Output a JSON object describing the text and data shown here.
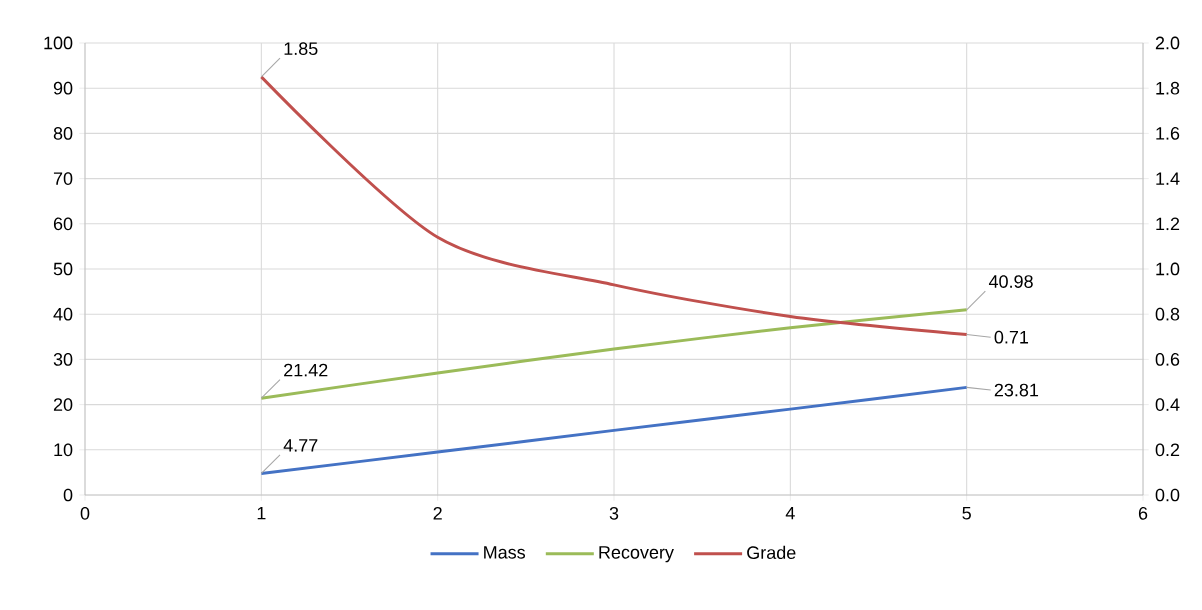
{
  "chart_data": {
    "type": "line",
    "x": [
      1,
      2,
      3,
      4,
      5
    ],
    "series": [
      {
        "name": "Mass",
        "color": "#4472c4",
        "values": [
          4.77,
          9.5,
          14.3,
          19.0,
          23.81
        ],
        "value_labels": [
          "4.77",
          null,
          null,
          null,
          "23.81"
        ]
      },
      {
        "name": "Recovery",
        "color": "#9bbb59",
        "values": [
          21.42,
          27.0,
          32.3,
          37.0,
          40.98
        ],
        "value_labels": [
          "21.42",
          null,
          null,
          null,
          "40.98"
        ]
      },
      {
        "name": "Grade",
        "color": "#c0504d",
        "axis": "y2",
        "values": [
          1.85,
          1.14,
          0.93,
          0.79,
          0.71
        ],
        "value_labels": [
          "1.85",
          null,
          null,
          null,
          "0.71"
        ]
      }
    ],
    "xlim": [
      0,
      6
    ],
    "xticks": [
      0,
      1,
      2,
      3,
      4,
      5,
      6
    ],
    "ylim": [
      0,
      100
    ],
    "yticks": [
      0,
      10,
      20,
      30,
      40,
      50,
      60,
      70,
      80,
      90,
      100
    ],
    "y2lim": [
      0,
      2
    ],
    "y2ticks": [
      {
        "value": 0,
        "label": "0.0"
      },
      {
        "value": 0.2,
        "label": "0.2"
      },
      {
        "value": 0.4,
        "label": "0.4"
      },
      {
        "value": 0.6,
        "label": "0.6"
      },
      {
        "value": 0.8,
        "label": "0.8"
      },
      {
        "value": 1,
        "label": "1.0"
      },
      {
        "value": 1.2,
        "label": "1.2"
      },
      {
        "value": 1.4,
        "label": "1.4"
      },
      {
        "value": 1.6,
        "label": "1.6"
      },
      {
        "value": 1.8,
        "label": "1.8"
      },
      {
        "value": 2,
        "label": "2.0"
      }
    ],
    "grid": true,
    "legend": "bottom",
    "marker": "none",
    "line_style": "solid"
  }
}
